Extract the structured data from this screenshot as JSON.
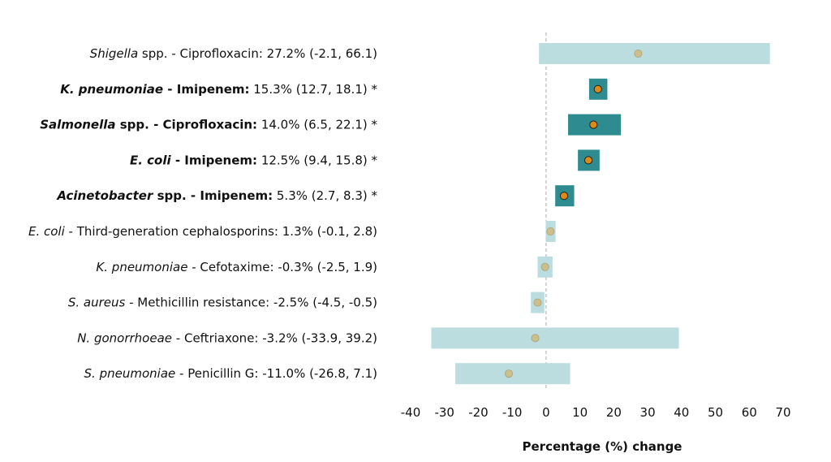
{
  "chart_data": {
    "type": "forest",
    "xlabel": "Percentage (%) change",
    "xlim": [
      -40,
      70
    ],
    "xticks": [
      -40,
      -30,
      -20,
      -10,
      0,
      10,
      20,
      30,
      40,
      50,
      60,
      70
    ],
    "reference_line": 0,
    "colors": {
      "significant_bar": "#2e8b8f",
      "nonsignificant_bar": "#bcdde0",
      "significant_point": "#e08a16",
      "nonsignificant_point": "#cdbf8c",
      "reference_line": "#aaaaaa"
    },
    "rows": [
      {
        "organism": "Shigella",
        "organism_suffix": " spp.",
        "drug": "Ciprofloxacin",
        "stat": "27.2% (-2.1, 66.1)",
        "estimate": 27.2,
        "lower": -2.1,
        "upper": 66.1,
        "significant": false,
        "star": ""
      },
      {
        "organism": "K. pneumoniae",
        "organism_suffix": "",
        "drug": "Imipenem",
        "stat": "15.3% (12.7, 18.1)",
        "estimate": 15.3,
        "lower": 12.7,
        "upper": 18.1,
        "significant": true,
        "star": " *"
      },
      {
        "organism": "Salmonella",
        "organism_suffix": " spp.",
        "drug": "Ciprofloxacin",
        "stat": "14.0% (6.5, 22.1)",
        "estimate": 14.0,
        "lower": 6.5,
        "upper": 22.1,
        "significant": true,
        "star": " *"
      },
      {
        "organism": "E. coli",
        "organism_suffix": "",
        "drug": "Imipenem",
        "stat": "12.5% (9.4, 15.8)",
        "estimate": 12.5,
        "lower": 9.4,
        "upper": 15.8,
        "significant": true,
        "star": " *"
      },
      {
        "organism": "Acinetobacter",
        "organism_suffix": " spp.",
        "drug": "Imipenem",
        "stat": "5.3% (2.7, 8.3)",
        "estimate": 5.3,
        "lower": 2.7,
        "upper": 8.3,
        "significant": true,
        "star": " *"
      },
      {
        "organism": "E. coli",
        "organism_suffix": "",
        "drug": "Third-generation cephalosporins",
        "stat": "1.3% (-0.1, 2.8)",
        "estimate": 1.3,
        "lower": -0.1,
        "upper": 2.8,
        "significant": false,
        "star": ""
      },
      {
        "organism": "K. pneumoniae",
        "organism_suffix": "",
        "drug": "Cefotaxime",
        "stat": "-0.3% (-2.5, 1.9)",
        "estimate": -0.3,
        "lower": -2.5,
        "upper": 1.9,
        "significant": false,
        "star": ""
      },
      {
        "organism": "S. aureus",
        "organism_suffix": "",
        "drug": "Methicillin resistance",
        "stat": "-2.5% (-4.5, -0.5)",
        "estimate": -2.5,
        "lower": -4.5,
        "upper": -0.5,
        "significant": false,
        "star": ""
      },
      {
        "organism": "N. gonorrhoeae",
        "organism_suffix": "",
        "drug": "Ceftriaxone",
        "stat": "-3.2% (-33.9, 39.2)",
        "estimate": -3.2,
        "lower": -33.9,
        "upper": 39.2,
        "significant": false,
        "star": ""
      },
      {
        "organism": "S. pneumoniae",
        "organism_suffix": "",
        "drug": "Penicillin G",
        "stat": "-11.0% (-26.8, 7.1)",
        "estimate": -11.0,
        "lower": -26.8,
        "upper": 7.1,
        "significant": false,
        "star": ""
      }
    ]
  }
}
